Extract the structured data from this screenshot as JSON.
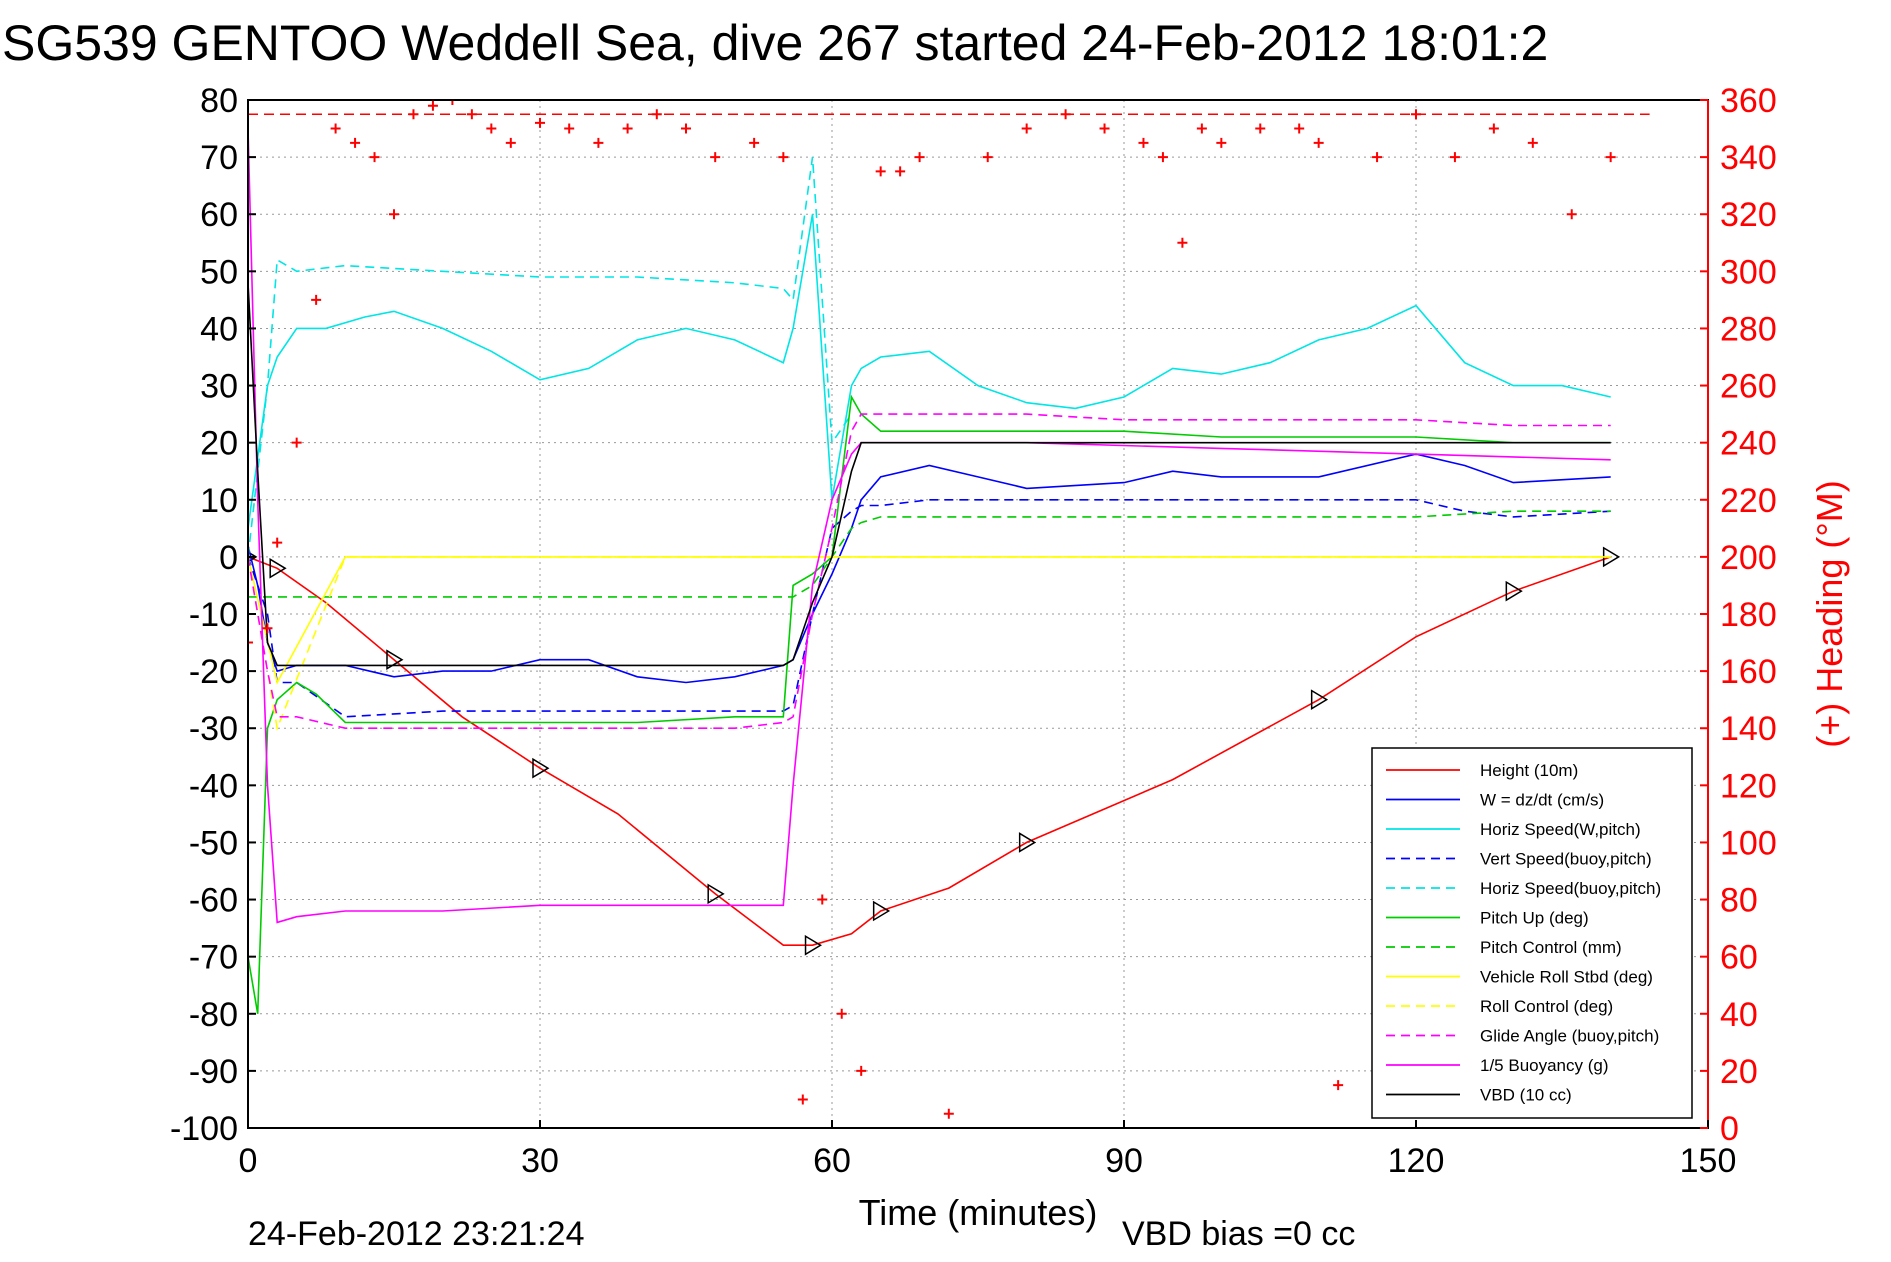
{
  "chart_data": {
    "type": "line",
    "title": "SG539 GENTOO Weddell Sea, dive 267 started 24-Feb-2012 18:01:2",
    "xlabel": "Time (minutes)",
    "ylabel": "",
    "ylabel_right": "(+) Heading (°M)",
    "xlim": [
      0,
      150
    ],
    "ylim": [
      -100,
      80
    ],
    "ylim_right": [
      0,
      360
    ],
    "xticks": [
      "0",
      "30",
      "60",
      "90",
      "120",
      "150"
    ],
    "yticks": [
      "80",
      "70",
      "60",
      "50",
      "40",
      "30",
      "20",
      "10",
      "0",
      "-10",
      "-20",
      "-30",
      "-40",
      "-50",
      "-60",
      "-70",
      "-80",
      "-90",
      "-100"
    ],
    "yticks_right": [
      "360",
      "340",
      "320",
      "300",
      "280",
      "260",
      "240",
      "220",
      "200",
      "180",
      "160",
      "140",
      "120",
      "100",
      "80",
      "60",
      "40",
      "20",
      "0"
    ],
    "grid": true,
    "legend_position": "bottom-right",
    "footer_left": "24-Feb-2012 23:21:24",
    "footer_right": "VBD bias =0 cc",
    "series": [
      {
        "name": "Height (10m)",
        "color": "#ff0000",
        "style": "solid",
        "x": [
          0,
          3,
          8,
          15,
          22,
          30,
          38,
          48,
          55,
          58,
          62,
          65,
          72,
          80,
          95,
          110,
          120,
          130,
          140
        ],
        "y": [
          0,
          -2,
          -8,
          -18,
          -28,
          -37,
          -45,
          -59,
          -68,
          -68,
          -66,
          -62,
          -58,
          -50,
          -39,
          -25,
          -14,
          -6,
          0
        ]
      },
      {
        "name": "W = dz/dt (cm/s)",
        "color": "#0000ff",
        "style": "solid",
        "x": [
          0,
          1,
          2,
          3,
          5,
          10,
          15,
          20,
          25,
          30,
          35,
          40,
          45,
          50,
          55,
          56,
          58,
          60,
          62,
          63,
          65,
          70,
          75,
          80,
          90,
          95,
          100,
          110,
          120,
          125,
          130,
          140
        ],
        "y": [
          2,
          -5,
          -15,
          -20,
          -19,
          -19,
          -21,
          -20,
          -20,
          -18,
          -18,
          -21,
          -22,
          -21,
          -19,
          -18,
          -10,
          -3,
          5,
          10,
          14,
          16,
          14,
          12,
          13,
          15,
          14,
          14,
          18,
          16,
          13,
          14
        ]
      },
      {
        "name": "Horiz Speed(W,pitch)",
        "color": "#00e5e5",
        "style": "solid",
        "x": [
          0,
          2,
          3,
          5,
          8,
          12,
          15,
          20,
          25,
          30,
          35,
          40,
          45,
          50,
          55,
          56,
          58,
          60,
          62,
          63,
          65,
          70,
          75,
          80,
          85,
          90,
          95,
          100,
          105,
          110,
          115,
          120,
          125,
          130,
          135,
          140
        ],
        "y": [
          5,
          30,
          35,
          40,
          40,
          42,
          43,
          40,
          36,
          31,
          33,
          38,
          40,
          38,
          34,
          40,
          60,
          10,
          30,
          33,
          35,
          36,
          30,
          27,
          26,
          28,
          33,
          32,
          34,
          38,
          40,
          44,
          34,
          30,
          30,
          28
        ]
      },
      {
        "name": "Vert Speed(buoy,pitch)",
        "color": "#0000ff",
        "style": "dashed",
        "x": [
          0,
          2,
          3,
          5,
          10,
          20,
          30,
          40,
          50,
          55,
          56,
          58,
          60,
          62,
          63,
          65,
          70,
          80,
          90,
          100,
          110,
          120,
          125,
          130,
          140
        ],
        "y": [
          0,
          -10,
          -22,
          -22,
          -28,
          -27,
          -27,
          -27,
          -27,
          -27,
          -26,
          -10,
          5,
          8,
          9,
          9,
          10,
          10,
          10,
          10,
          10,
          10,
          8,
          7,
          8
        ]
      },
      {
        "name": "Horiz Speed(buoy,pitch)",
        "color": "#00e5e5",
        "style": "dashed",
        "x": [
          0,
          2,
          3,
          5,
          10,
          20,
          30,
          40,
          50,
          55,
          56,
          58,
          60,
          62
        ],
        "y": [
          0,
          30,
          52,
          50,
          51,
          50,
          49,
          49,
          48,
          47,
          45,
          70,
          20,
          25
        ]
      },
      {
        "name": "Pitch Up (deg)",
        "color": "#00cc00",
        "style": "solid",
        "x": [
          0,
          1,
          2,
          3,
          5,
          7,
          10,
          15,
          20,
          30,
          40,
          50,
          55,
          56,
          58,
          60,
          62,
          63,
          65,
          70,
          80,
          90,
          100,
          110,
          120,
          130,
          140
        ],
        "y": [
          -70,
          -80,
          -30,
          -25,
          -22,
          -24,
          -29,
          -29,
          -29,
          -29,
          -29,
          -28,
          -28,
          -5,
          -3,
          0,
          28,
          25,
          22,
          22,
          22,
          22,
          21,
          21,
          21,
          20,
          20
        ]
      },
      {
        "name": "Pitch Control (mm)",
        "color": "#00cc00",
        "style": "dashed",
        "x": [
          0,
          3,
          10,
          20,
          30,
          40,
          50,
          56,
          58,
          60,
          62,
          63,
          65,
          70,
          80,
          90,
          100,
          110,
          120,
          130,
          140
        ],
        "y": [
          -7,
          -7,
          -7,
          -7,
          -7,
          -7,
          -7,
          -7,
          -5,
          0,
          5,
          6,
          7,
          7,
          7,
          7,
          7,
          7,
          7,
          8,
          8
        ]
      },
      {
        "name": "Vehicle Roll Stbd (deg)",
        "color": "#ffff00",
        "style": "solid",
        "x": [
          0,
          3,
          10,
          20,
          30,
          40,
          50,
          55,
          60,
          62,
          65,
          70,
          80,
          90,
          100,
          110,
          120,
          130,
          140
        ],
        "y": [
          0,
          -22,
          0,
          0,
          0,
          0,
          0,
          0,
          0,
          0,
          0,
          0,
          0,
          0,
          0,
          0,
          0,
          0,
          0
        ]
      },
      {
        "name": "Roll Control (deg)",
        "color": "#ffff00",
        "style": "dashed",
        "x": [
          0,
          3,
          10,
          20,
          30,
          40,
          50,
          55,
          60,
          65,
          70,
          80,
          90,
          100,
          110,
          120,
          130,
          140
        ],
        "y": [
          0,
          -30,
          0,
          0,
          0,
          0,
          0,
          0,
          0,
          0,
          0,
          0,
          0,
          0,
          0,
          0,
          0,
          0
        ]
      },
      {
        "name": "Glide Angle (buoy,pitch)",
        "color": "#ff00ff",
        "style": "dashed",
        "x": [
          0,
          2,
          3,
          5,
          10,
          20,
          30,
          40,
          50,
          55,
          56,
          58,
          60,
          62,
          63,
          65,
          70,
          80,
          90,
          100,
          110,
          120,
          130,
          140
        ],
        "y": [
          0,
          -20,
          -28,
          -28,
          -30,
          -30,
          -30,
          -30,
          -30,
          -29,
          -28,
          -10,
          5,
          22,
          25,
          25,
          25,
          25,
          24,
          24,
          24,
          24,
          23,
          23
        ]
      },
      {
        "name": "1/5 Buoyancy (g)",
        "color": "#ff00ff",
        "style": "solid",
        "x": [
          0,
          1,
          2,
          3,
          5,
          10,
          20,
          30,
          40,
          50,
          55,
          56,
          58,
          60,
          62,
          63,
          65,
          80,
          100,
          120,
          140
        ],
        "y": [
          75,
          10,
          -40,
          -64,
          -63,
          -62,
          -62,
          -61,
          -61,
          -61,
          -61,
          -40,
          -5,
          10,
          18,
          20,
          20,
          20,
          19,
          18,
          17
        ]
      },
      {
        "name": "VBD (10 cc)",
        "color": "#000000",
        "style": "solid",
        "x": [
          0,
          1,
          2,
          3,
          5,
          10,
          20,
          30,
          40,
          50,
          55,
          56,
          58,
          60,
          62,
          63,
          65,
          80,
          100,
          120,
          140
        ],
        "y": [
          48,
          15,
          -15,
          -19,
          -19,
          -19,
          -19,
          -19,
          -19,
          -19,
          -19,
          -18,
          -8,
          0,
          15,
          20,
          20,
          20,
          20,
          20,
          20
        ]
      },
      {
        "name": "",
        "color": "#ff0000",
        "style": "markers",
        "axis": "right",
        "x": [
          0,
          2,
          3,
          5,
          7,
          9,
          11,
          13,
          15,
          17,
          19,
          21,
          23,
          25,
          27,
          30,
          33,
          36,
          39,
          42,
          45,
          48,
          52,
          55,
          57,
          59,
          61,
          63,
          65,
          67,
          69,
          72,
          76,
          80,
          84,
          88,
          92,
          94,
          96,
          98,
          100,
          104,
          108,
          110,
          112,
          116,
          120,
          124,
          128,
          132,
          136,
          140
        ],
        "y": [
          170,
          175,
          205,
          240,
          290,
          350,
          345,
          340,
          320,
          355,
          358,
          360,
          355,
          350,
          345,
          352,
          350,
          345,
          350,
          355,
          350,
          340,
          345,
          340,
          10,
          80,
          40,
          20,
          335,
          335,
          340,
          5,
          340,
          350,
          355,
          350,
          345,
          340,
          310,
          350,
          345,
          350,
          350,
          345,
          15,
          340,
          355,
          340,
          350,
          345,
          320,
          340
        ]
      }
    ],
    "threshold_line_right": 355
  }
}
